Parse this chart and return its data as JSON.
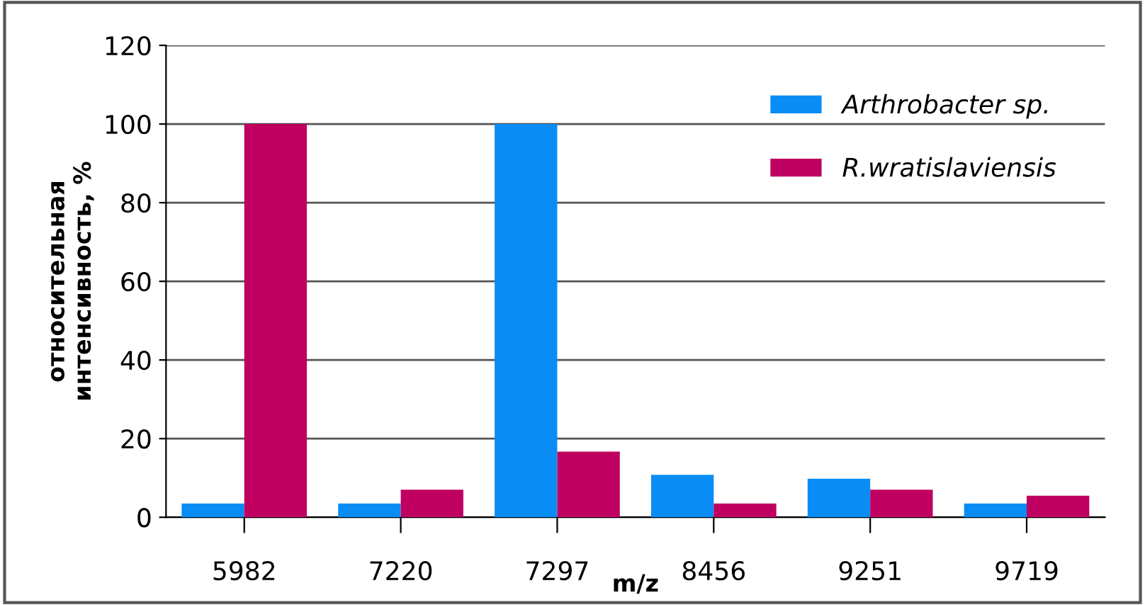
{
  "chart_data": {
    "type": "bar",
    "xlabel": "m/z",
    "ylabel": "относительная\nинтенсивность, %",
    "categories": [
      "5982",
      "7220",
      "7297",
      "8456",
      "9251",
      "9719"
    ],
    "series": [
      {
        "name": "Arthrobacter sp.",
        "color": "#0a8cf5",
        "values": [
          3.5,
          3.5,
          100,
          10.8,
          9.8,
          3.5
        ]
      },
      {
        "name": "R.wratislaviensis",
        "color": "#bf0060",
        "values": [
          100,
          7,
          16.7,
          3.5,
          7,
          5.5
        ]
      }
    ],
    "ylim": [
      0,
      120
    ],
    "yticks": [
      0,
      20,
      40,
      60,
      80,
      100,
      120
    ],
    "grid": "y",
    "legend": "top right"
  }
}
